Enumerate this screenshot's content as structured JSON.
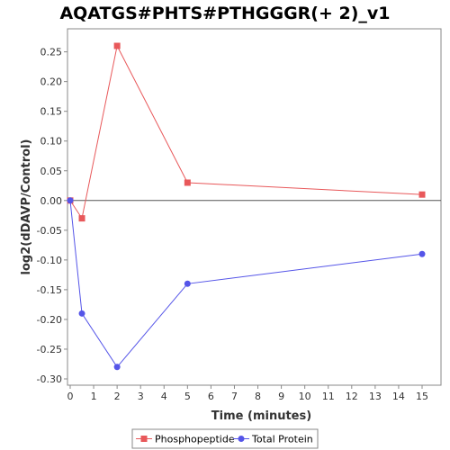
{
  "chart_data": {
    "type": "line",
    "title": "AQATGS#PHTS#PTHGGGR(+ 2)_v1",
    "xlabel": "Time (minutes)",
    "ylabel": "log2(dDAVP/Control)",
    "xlim": [
      0,
      15.75
    ],
    "ylim": [
      -0.31,
      0.285
    ],
    "xticks": [
      0,
      1,
      2,
      3,
      4,
      5,
      6,
      7,
      8,
      9,
      10,
      11,
      12,
      13,
      14,
      15
    ],
    "yticks": [
      -0.3,
      -0.25,
      -0.2,
      -0.15,
      -0.1,
      -0.05,
      0.0,
      0.05,
      0.1,
      0.15,
      0.2,
      0.25
    ],
    "ytick_labels": [
      "-0.30",
      "-0.25",
      "-0.20",
      "-0.15",
      "-0.10",
      "-0.05",
      "0.00",
      "0.05",
      "0.10",
      "0.15",
      "0.20",
      "0.25"
    ],
    "grid": false,
    "zero_line": true,
    "legend_position": "bottom",
    "series": [
      {
        "name": "Phosphopeptide",
        "color": "#e8585a",
        "marker": "square",
        "x": [
          0,
          0.5,
          2,
          5,
          15
        ],
        "y": [
          0.0,
          -0.03,
          0.26,
          0.03,
          0.01
        ]
      },
      {
        "name": "Total Protein",
        "color": "#5555e8",
        "marker": "circle",
        "x": [
          0,
          0.5,
          2,
          5,
          15
        ],
        "y": [
          0.0,
          -0.19,
          -0.28,
          -0.14,
          -0.09
        ]
      }
    ]
  }
}
